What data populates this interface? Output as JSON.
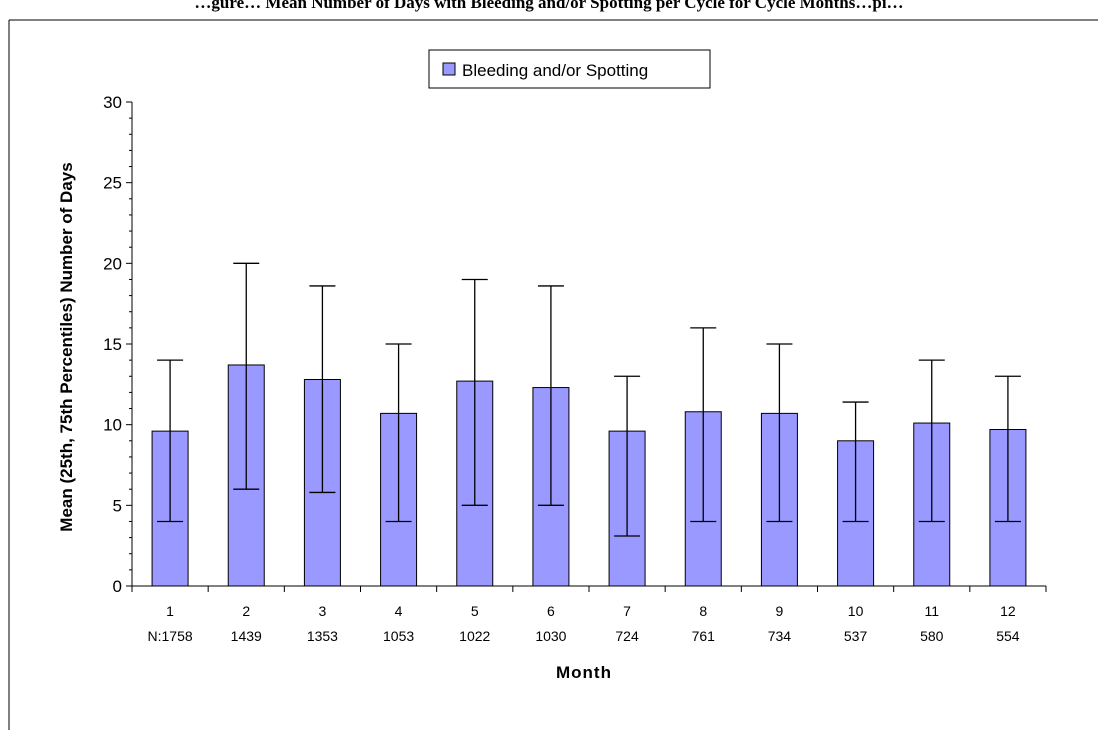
{
  "caption": "…gure… Mean Number of Days with Bleeding and/or Spotting per Cycle for Cycle Months…pi…",
  "chart_data": {
    "type": "bar",
    "title": "",
    "xlabel": "Month",
    "ylabel": "Mean (25th, 75th Percentiles) Number of Days",
    "categories": [
      "1",
      "2",
      "3",
      "4",
      "5",
      "6",
      "7",
      "8",
      "9",
      "10",
      "11",
      "12"
    ],
    "n_labels": [
      "N:1758",
      "1439",
      "1353",
      "1053",
      "1022",
      "1030",
      "724",
      "761",
      "734",
      "537",
      "580",
      "554"
    ],
    "series": [
      {
        "name": "Bleeding and/or Spotting",
        "values": [
          9.6,
          13.7,
          12.8,
          10.7,
          12.7,
          12.3,
          9.6,
          10.8,
          10.7,
          9.0,
          10.1,
          9.7
        ],
        "p25": [
          4,
          6,
          5.8,
          4,
          5,
          5,
          3.1,
          4,
          4,
          4,
          4,
          4
        ],
        "p75": [
          14,
          20,
          18.6,
          15,
          19,
          18.6,
          13,
          16,
          15,
          11.4,
          14,
          13
        ]
      }
    ],
    "ylim": [
      0,
      30
    ],
    "yticks": [
      0,
      5,
      10,
      15,
      20,
      25,
      30
    ],
    "grid": false,
    "legend_position": "top-center",
    "colors": {
      "bar_fill": "#9999ff",
      "bar_stroke": "#000000",
      "frame": "#000000"
    }
  }
}
